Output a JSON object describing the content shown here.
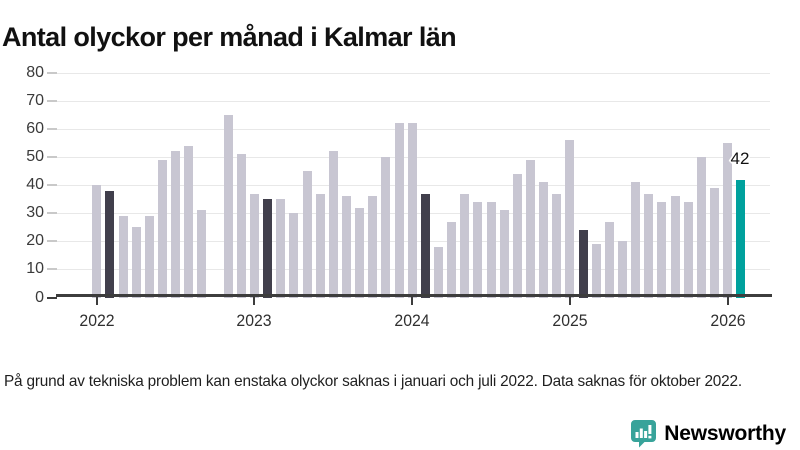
{
  "title": "Antal olyckor per månad i Kalmar län",
  "footnote": "På grund av tekniska problem kan enstaka olyckor saknas i januari och juli 2022. Data saknas för oktober 2022.",
  "branding": {
    "name": "Newsworthy",
    "icon": "newsworthy-pin-bar-chart-icon"
  },
  "colors": {
    "bar_default": "#c8c6d2",
    "bar_highlight_past": "#413f4c",
    "bar_highlight_current": "#00a19d",
    "brand_teal": "#38a39a",
    "grid": "#e8e8e8",
    "tick_dash": "#c9c9c9",
    "axis": "#3d3d3d",
    "title_text": "#111111",
    "label_text": "#3a3a3a"
  },
  "chart_data": {
    "type": "bar",
    "title": "Antal olyckor per månad i Kalmar län",
    "xlabel": "",
    "ylabel": "",
    "ylim": [
      0,
      80
    ],
    "grid": true,
    "legend": "none",
    "y_ticks": [
      0,
      10,
      20,
      30,
      40,
      50,
      60,
      70,
      80
    ],
    "x_tick_years": [
      "2022",
      "2023",
      "2024",
      "2025",
      "2026"
    ],
    "missing_months": [
      "2022-10"
    ],
    "highlight_dark_months": [
      "2022-02",
      "2023-02",
      "2024-02",
      "2025-02"
    ],
    "highlight_teal_month": "2026-02",
    "annotation": {
      "text": "42",
      "month": "2026-02",
      "value": 42
    },
    "months": [
      {
        "m": "2022-01",
        "v": 40
      },
      {
        "m": "2022-02",
        "v": 38
      },
      {
        "m": "2022-03",
        "v": 29
      },
      {
        "m": "2022-04",
        "v": 25
      },
      {
        "m": "2022-05",
        "v": 29
      },
      {
        "m": "2022-06",
        "v": 49
      },
      {
        "m": "2022-07",
        "v": 52
      },
      {
        "m": "2022-08",
        "v": 54
      },
      {
        "m": "2022-09",
        "v": 31
      },
      {
        "m": "2022-10",
        "v": null
      },
      {
        "m": "2022-11",
        "v": 65
      },
      {
        "m": "2022-12",
        "v": 51
      },
      {
        "m": "2023-01",
        "v": 37
      },
      {
        "m": "2023-02",
        "v": 35
      },
      {
        "m": "2023-03",
        "v": 35
      },
      {
        "m": "2023-04",
        "v": 30
      },
      {
        "m": "2023-05",
        "v": 45
      },
      {
        "m": "2023-06",
        "v": 37
      },
      {
        "m": "2023-07",
        "v": 52
      },
      {
        "m": "2023-08",
        "v": 36
      },
      {
        "m": "2023-09",
        "v": 32
      },
      {
        "m": "2023-10",
        "v": 36
      },
      {
        "m": "2023-11",
        "v": 50
      },
      {
        "m": "2023-12",
        "v": 62
      },
      {
        "m": "2024-01",
        "v": 62
      },
      {
        "m": "2024-02",
        "v": 37
      },
      {
        "m": "2024-03",
        "v": 18
      },
      {
        "m": "2024-04",
        "v": 27
      },
      {
        "m": "2024-05",
        "v": 37
      },
      {
        "m": "2024-06",
        "v": 34
      },
      {
        "m": "2024-07",
        "v": 34
      },
      {
        "m": "2024-08",
        "v": 31
      },
      {
        "m": "2024-09",
        "v": 44
      },
      {
        "m": "2024-10",
        "v": 49
      },
      {
        "m": "2024-11",
        "v": 41
      },
      {
        "m": "2024-12",
        "v": 37
      },
      {
        "m": "2025-01",
        "v": 56
      },
      {
        "m": "2025-02",
        "v": 24
      },
      {
        "m": "2025-03",
        "v": 19
      },
      {
        "m": "2025-04",
        "v": 27
      },
      {
        "m": "2025-05",
        "v": 20
      },
      {
        "m": "2025-06",
        "v": 41
      },
      {
        "m": "2025-07",
        "v": 37
      },
      {
        "m": "2025-08",
        "v": 34
      },
      {
        "m": "2025-09",
        "v": 36
      },
      {
        "m": "2025-10",
        "v": 34
      },
      {
        "m": "2025-11",
        "v": 50
      },
      {
        "m": "2025-12",
        "v": 39
      },
      {
        "m": "2026-01",
        "v": 55
      },
      {
        "m": "2026-02",
        "v": 42
      }
    ]
  }
}
